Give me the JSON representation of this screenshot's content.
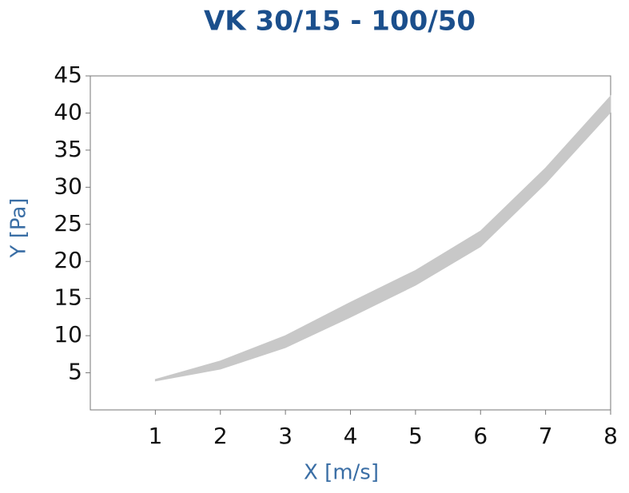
{
  "chart_data": {
    "type": "band",
    "title": "VK 30/15 - 100/50",
    "x_label": "X [m/s]",
    "y_label": "Y [Pa]",
    "x": [
      1,
      2,
      3,
      4,
      5,
      6,
      7,
      8
    ],
    "series": [
      {
        "color": "#c8c8c8",
        "values": [
          3.9,
          5.5,
          8.4,
          12.5,
          16.8,
          22.0,
          30.5,
          40.1
        ]
      },
      {
        "color": "#c8c8c8",
        "values": [
          4.1,
          6.6,
          10.0,
          14.5,
          18.8,
          24.1,
          32.6,
          42.3
        ]
      }
    ],
    "xlim": [
      0,
      8
    ],
    "ylim": [
      0,
      45
    ],
    "xticks": [
      1,
      2,
      3,
      4,
      5,
      6,
      7,
      8
    ],
    "yticks": [
      5,
      10,
      15,
      20,
      25,
      30,
      35,
      40,
      45
    ]
  }
}
